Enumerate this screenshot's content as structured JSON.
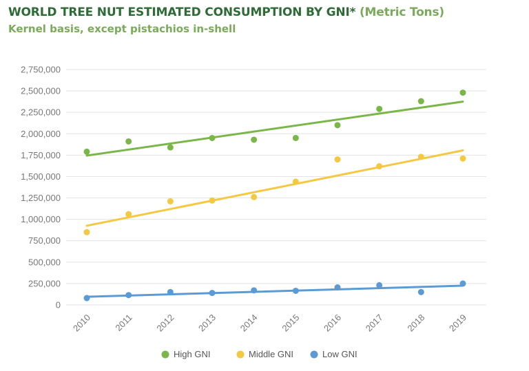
{
  "title": "WORLD TREE NUT ESTIMATED CONSUMPTION  BY GNI*",
  "title_unit": "(Metric Tons)",
  "subtitle": "Kernel basis, except pistachios in-shell",
  "chart_data": {
    "type": "scatter",
    "title": "WORLD TREE NUT ESTIMATED CONSUMPTION BY GNI* (Metric Tons)",
    "subtitle": "Kernel basis, except pistachios in-shell",
    "xlabel": "",
    "ylabel": "",
    "ylim": [
      0,
      2750000
    ],
    "yticks": [
      0,
      250000,
      500000,
      750000,
      1000000,
      1250000,
      1500000,
      1750000,
      2000000,
      2250000,
      2500000,
      2750000
    ],
    "ytick_labels": [
      "0",
      "250,000",
      "500,000",
      "750,000",
      "1,000,000",
      "1,250,000",
      "1,500,000",
      "1,750,000",
      "2,000,000",
      "2,250,000",
      "2,500,000",
      "2,750,000"
    ],
    "categories": [
      "2010",
      "2011",
      "2012",
      "2013",
      "2014",
      "2015",
      "2016",
      "2017",
      "2018",
      "2019"
    ],
    "grid": true,
    "legend_position": "bottom",
    "series": [
      {
        "name": "High GNI",
        "color": "#7ab648",
        "values": [
          1790000,
          1910000,
          1840000,
          1950000,
          1930000,
          1950000,
          2100000,
          2290000,
          2380000,
          2480000
        ],
        "trend": [
          1745000,
          2375000
        ]
      },
      {
        "name": "Middle GNI",
        "color": "#f5c842",
        "values": [
          850000,
          1060000,
          1210000,
          1220000,
          1260000,
          1440000,
          1700000,
          1620000,
          1730000,
          1710000
        ],
        "trend": [
          925000,
          1805000
        ]
      },
      {
        "name": "Low GNI",
        "color": "#5b9bd5",
        "values": [
          80000,
          115000,
          150000,
          140000,
          170000,
          165000,
          205000,
          230000,
          150000,
          250000
        ],
        "trend": [
          95000,
          225000
        ]
      }
    ]
  }
}
